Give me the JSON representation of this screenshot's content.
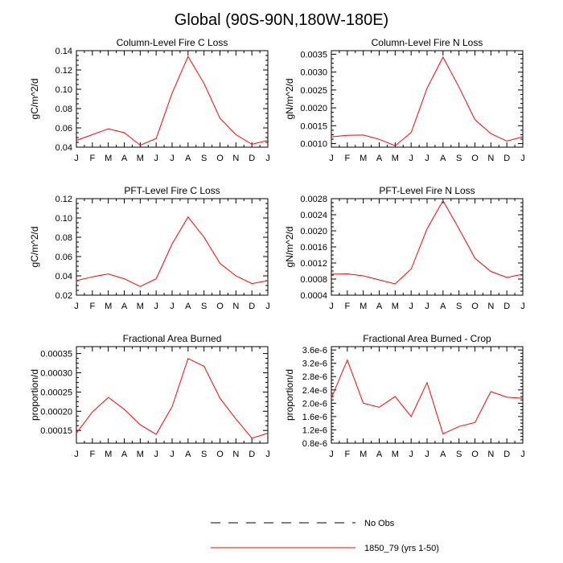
{
  "page": {
    "title": "Global (90S-90N,180W-180E)"
  },
  "legend": {
    "items": [
      {
        "label": "No Obs",
        "style": "dashed",
        "color": "#000000"
      },
      {
        "label": "1850_79 (yrs 1-50)",
        "style": "solid",
        "color": "#ff0000"
      }
    ]
  },
  "colors": {
    "series": "#ff0000",
    "axes": "#000000"
  },
  "chart_data": [
    {
      "type": "line",
      "title": "Column-Level Fire C Loss",
      "ylabel": "gC/m^2/d",
      "categories": [
        "J",
        "F",
        "M",
        "A",
        "M",
        "J",
        "J",
        "A",
        "S",
        "O",
        "N",
        "D",
        "J"
      ],
      "series": [
        {
          "name": "1850_79 (yrs 1-50)",
          "values": [
            0.047,
            0.053,
            0.059,
            0.055,
            0.042,
            0.049,
            0.096,
            0.134,
            0.106,
            0.07,
            0.053,
            0.043,
            0.047
          ]
        }
      ],
      "ylim": [
        0.04,
        0.14
      ],
      "yticks": [
        0.04,
        0.06,
        0.08,
        0.1,
        0.12,
        0.14
      ],
      "ytick_labels": [
        "0.04",
        "0.06",
        "0.08",
        "0.10",
        "0.12",
        "0.14"
      ],
      "grid": false
    },
    {
      "type": "line",
      "title": "Column-Level Fire N Loss",
      "ylabel": "gN/m^2/d",
      "categories": [
        "J",
        "F",
        "M",
        "A",
        "M",
        "J",
        "J",
        "A",
        "S",
        "O",
        "N",
        "D",
        "J"
      ],
      "series": [
        {
          "name": "1850_79 (yrs 1-50)",
          "values": [
            0.00119,
            0.00123,
            0.00124,
            0.00112,
            0.00094,
            0.00131,
            0.00255,
            0.00342,
            0.00258,
            0.00167,
            0.00128,
            0.00107,
            0.00119
          ]
        }
      ],
      "ylim": [
        0.0009,
        0.0036
      ],
      "yticks": [
        0.001,
        0.0015,
        0.002,
        0.0025,
        0.003,
        0.0035
      ],
      "ytick_labels": [
        "0.0010",
        "0.0015",
        "0.0020",
        "0.0025",
        "0.0030",
        "0.0035"
      ],
      "grid": false
    },
    {
      "type": "line",
      "title": "PFT-Level Fire C Loss",
      "ylabel": "gC/m^2/d",
      "categories": [
        "J",
        "F",
        "M",
        "A",
        "M",
        "J",
        "J",
        "A",
        "S",
        "O",
        "N",
        "D",
        "J"
      ],
      "series": [
        {
          "name": "1850_79 (yrs 1-50)",
          "values": [
            0.035,
            0.039,
            0.042,
            0.037,
            0.029,
            0.037,
            0.073,
            0.101,
            0.08,
            0.053,
            0.04,
            0.032,
            0.035
          ]
        }
      ],
      "ylim": [
        0.02,
        0.12
      ],
      "yticks": [
        0.02,
        0.04,
        0.06,
        0.08,
        0.1,
        0.12
      ],
      "ytick_labels": [
        "0.02",
        "0.04",
        "0.06",
        "0.08",
        "0.10",
        "0.12"
      ],
      "grid": false
    },
    {
      "type": "line",
      "title": "PFT-Level Fire N Loss",
      "ylabel": "gN/m^2/d",
      "categories": [
        "J",
        "F",
        "M",
        "A",
        "M",
        "J",
        "J",
        "A",
        "S",
        "O",
        "N",
        "D",
        "J"
      ],
      "series": [
        {
          "name": "1850_79 (yrs 1-50)",
          "values": [
            0.00092,
            0.00093,
            0.00088,
            0.00078,
            0.00068,
            0.00105,
            0.00205,
            0.00275,
            0.00205,
            0.00132,
            0.00099,
            0.00084,
            0.00092
          ]
        }
      ],
      "ylim": [
        0.0004,
        0.0028
      ],
      "yticks": [
        0.0004,
        0.0008,
        0.0012,
        0.0016,
        0.002,
        0.0024,
        0.0028
      ],
      "ytick_labels": [
        "0.0004",
        "0.0008",
        "0.0012",
        "0.0016",
        "0.0020",
        "0.0024",
        "0.0028"
      ],
      "grid": false
    },
    {
      "type": "line",
      "title": "Fractional Area Burned",
      "ylabel": "proportion/d",
      "categories": [
        "J",
        "F",
        "M",
        "A",
        "M",
        "J",
        "J",
        "A",
        "S",
        "O",
        "N",
        "D",
        "J"
      ],
      "series": [
        {
          "name": "1850_79 (yrs 1-50)",
          "values": [
            0.000143,
            0.000198,
            0.000236,
            0.000205,
            0.000165,
            0.00014,
            0.000212,
            0.000337,
            0.000317,
            0.000234,
            0.00018,
            0.00013,
            0.000143
          ]
        }
      ],
      "ylim": [
        0.000117,
        0.000368
      ],
      "yticks": [
        0.00015,
        0.0002,
        0.00025,
        0.0003,
        0.00035
      ],
      "ytick_labels": [
        "0.00015",
        "0.00020",
        "0.00025",
        "0.00030",
        "0.00035"
      ],
      "grid": false
    },
    {
      "type": "line",
      "title": "Fractional Area Burned - Crop",
      "ylabel": "proportion/d",
      "categories": [
        "J",
        "F",
        "M",
        "A",
        "M",
        "J",
        "J",
        "A",
        "S",
        "O",
        "N",
        "D",
        "J"
      ],
      "series": [
        {
          "name": "1850_79 (yrs 1-50)",
          "values": [
            2.15e-06,
            3.3e-06,
            2e-06,
            1.88e-06,
            2.2e-06,
            1.6e-06,
            2.62e-06,
            1.08e-06,
            1.3e-06,
            1.42e-06,
            2.35e-06,
            2.18e-06,
            2.15e-06
          ]
        }
      ],
      "ylim": [
        8e-07,
        3.7e-06
      ],
      "yticks": [
        8e-07,
        1.2e-06,
        1.6e-06,
        2e-06,
        2.4e-06,
        2.8e-06,
        3.2e-06,
        3.6e-06
      ],
      "ytick_labels": [
        "0.8e-6",
        "1.2e-6",
        "1.6e-6",
        "2.0e-6",
        "2.4e-6",
        "2.8e-6",
        "3.2e-6",
        "3.6e-6"
      ],
      "grid": false
    }
  ]
}
